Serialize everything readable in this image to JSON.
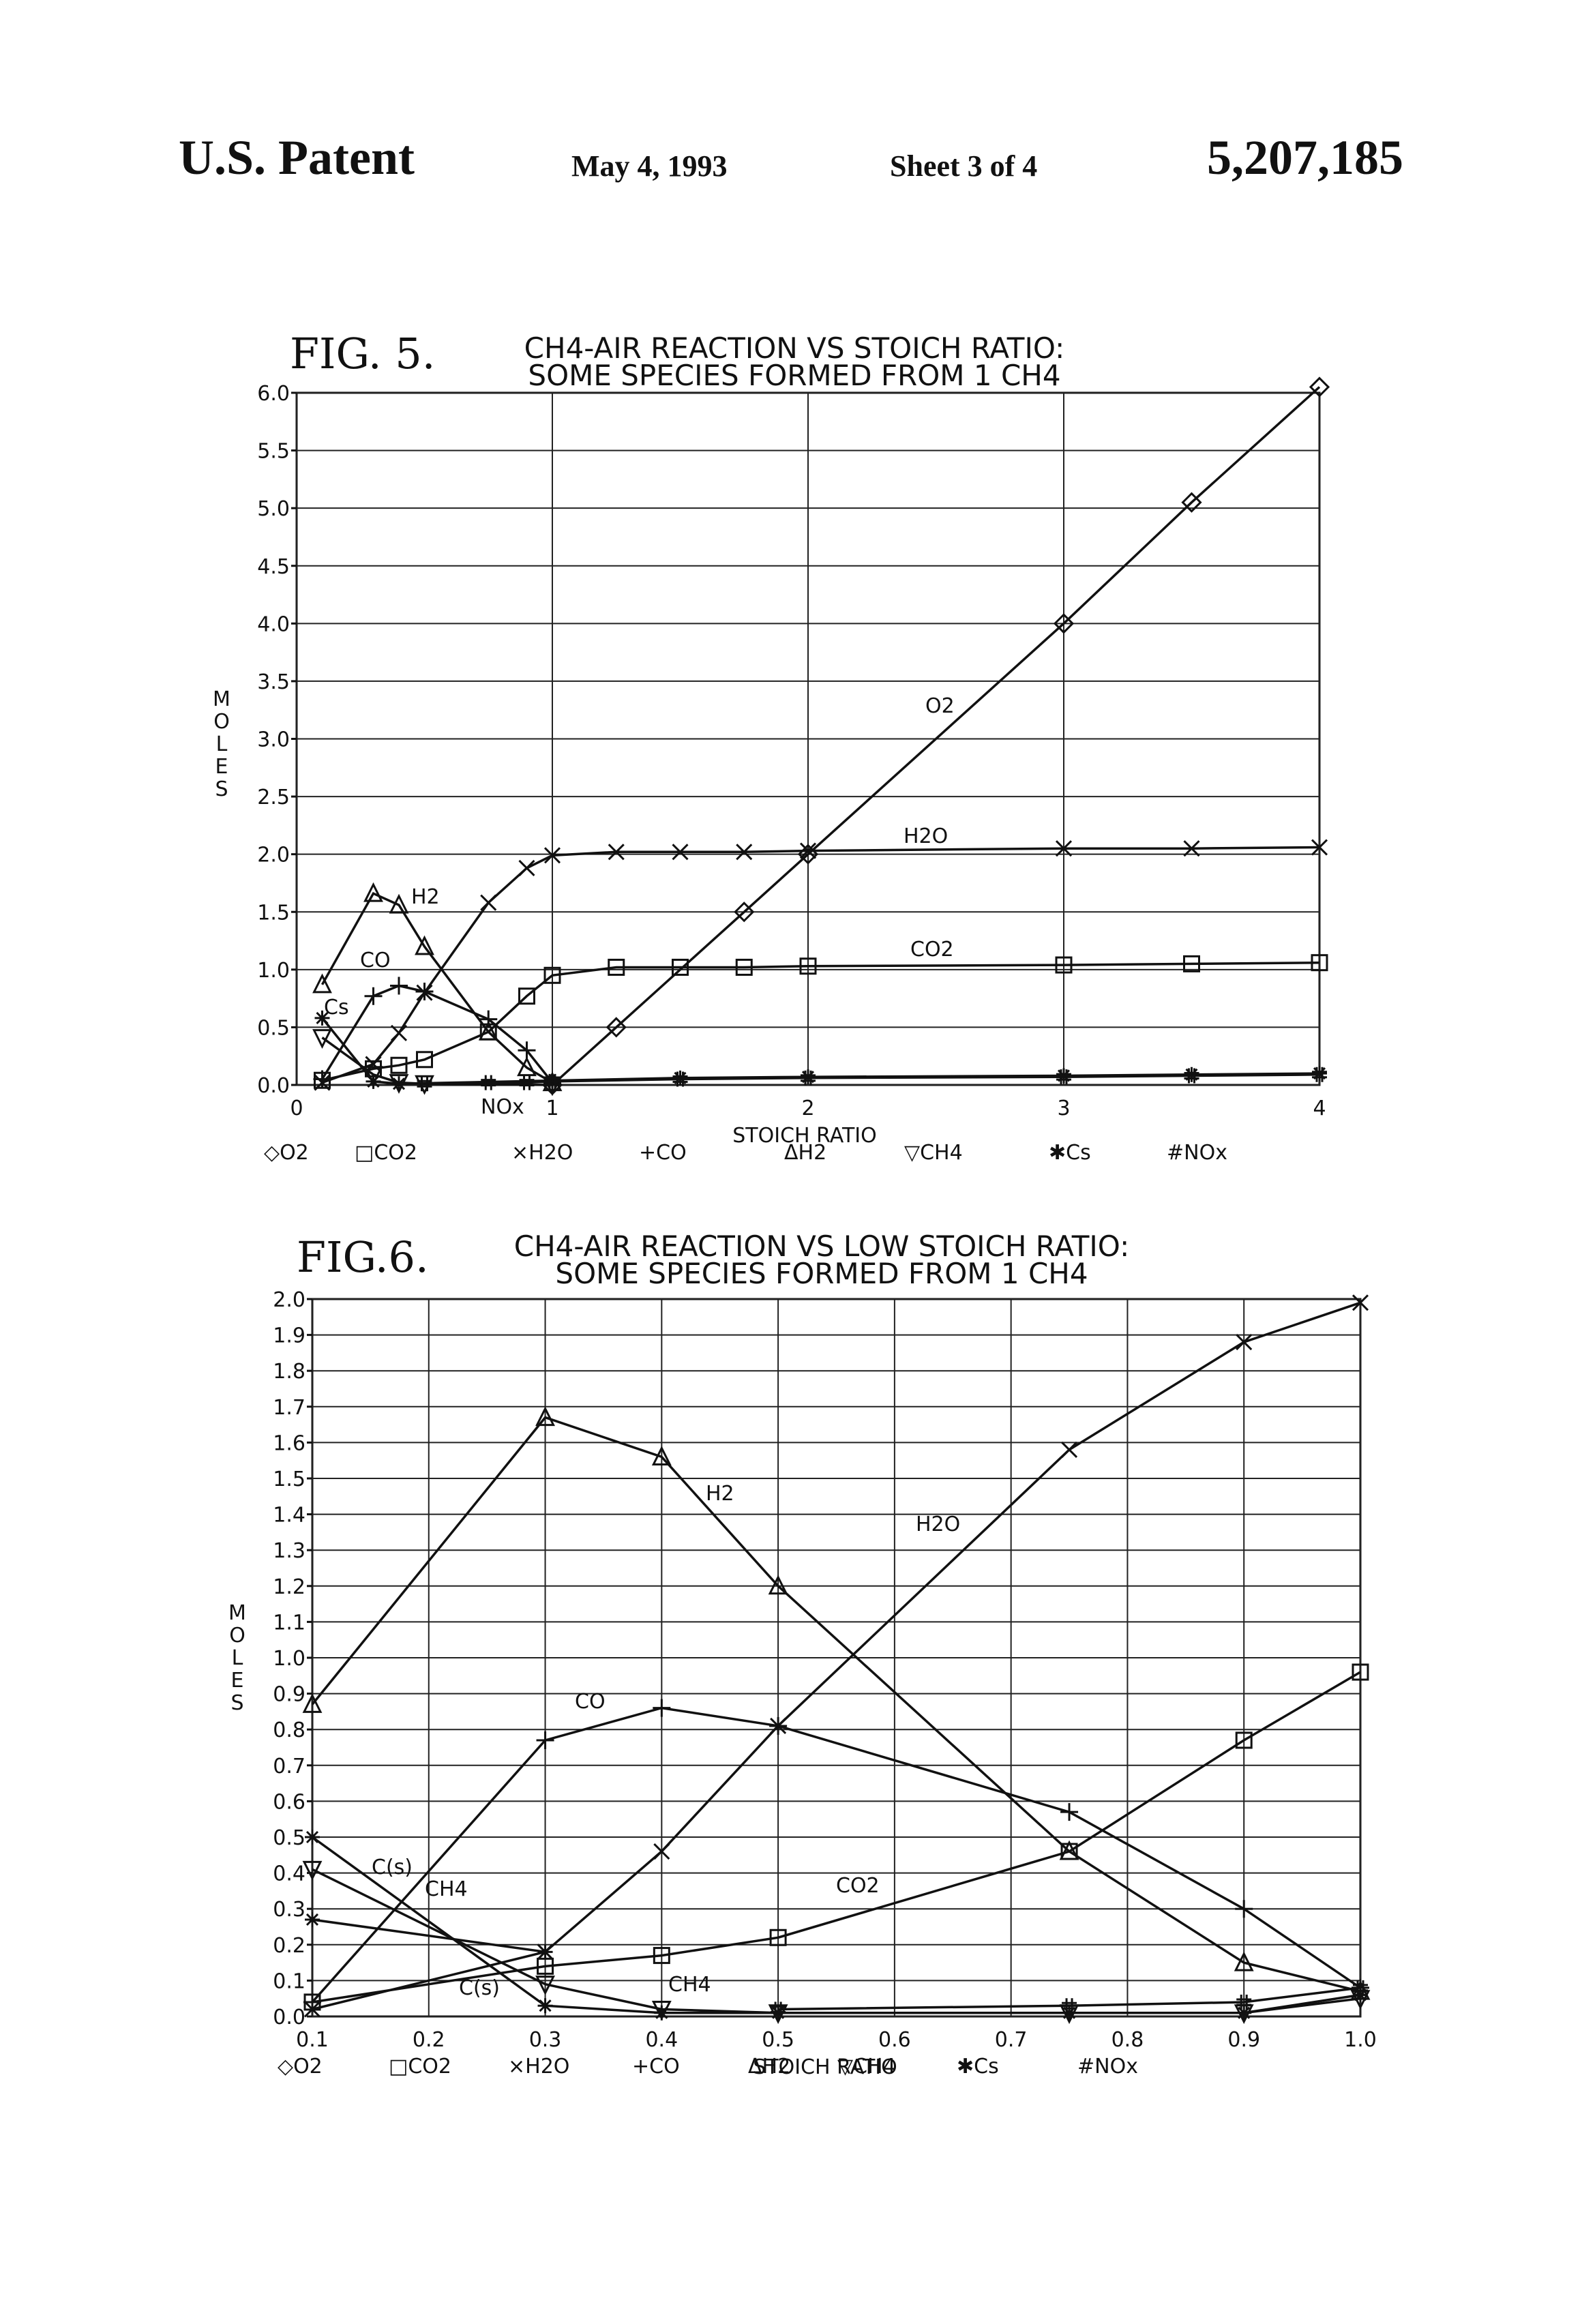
{
  "header": {
    "patent": "U.S. Patent",
    "date": "May 4, 1993",
    "sheet": "Sheet 3 of 4",
    "number": "5,207,185"
  },
  "chart_data": [
    {
      "type": "line",
      "figure_label": "FIG. 5.",
      "title": "CH4-AIR REACTION VS STOICH RATIO:",
      "subtitle": "SOME SPECIES FORMED FROM 1 CH4",
      "xlabel": "STOICH RATIO",
      "ylabel": "MOLES",
      "xlim": [
        0,
        4
      ],
      "ylim": [
        0,
        6
      ],
      "x_ticks": [
        0,
        1,
        2,
        3,
        4
      ],
      "x_tick_labels": [
        "0",
        "1",
        "2",
        "3",
        "4"
      ],
      "y_ticks": [
        0,
        0.5,
        1,
        1.5,
        2,
        2.5,
        3,
        3.5,
        4,
        4.5,
        5,
        5.5,
        6
      ],
      "y_tick_labels": [
        "0.0",
        "0.5",
        "1.0",
        "1.5",
        "2.0",
        "2.5",
        "3.0",
        "3.5",
        "4.0",
        "4.5",
        "5.0",
        "5.5",
        "6.0"
      ],
      "grid": true,
      "legend": [
        "◇O2",
        "□CO2",
        "×H2O",
        "+CO",
        "ΔH2",
        "▽CH4",
        "✱Cs",
        "#NOx"
      ],
      "series": [
        {
          "name": "O2",
          "marker": "diamond",
          "x": [
            1,
            1.25,
            1.75,
            2,
            3,
            3.5,
            4
          ],
          "y": [
            0,
            0.5,
            1.5,
            2.0,
            4.0,
            5.05,
            6.05
          ]
        },
        {
          "name": "H2O",
          "marker": "x",
          "x": [
            0.1,
            0.3,
            0.4,
            0.5,
            0.75,
            0.9,
            1,
            1.25,
            1.5,
            1.75,
            2,
            3,
            3.5,
            4
          ],
          "y": [
            0.02,
            0.18,
            0.45,
            0.8,
            1.58,
            1.88,
            1.99,
            2.02,
            2.02,
            2.02,
            2.03,
            2.05,
            2.05,
            2.06
          ]
        },
        {
          "name": "CO2",
          "marker": "square",
          "x": [
            0.1,
            0.3,
            0.4,
            0.5,
            0.75,
            0.9,
            1,
            1.25,
            1.5,
            1.75,
            2,
            3,
            3.5,
            4
          ],
          "y": [
            0.04,
            0.14,
            0.17,
            0.22,
            0.46,
            0.77,
            0.95,
            1.02,
            1.02,
            1.02,
            1.03,
            1.04,
            1.05,
            1.06
          ]
        },
        {
          "name": "CO",
          "marker": "plus",
          "x": [
            0.1,
            0.3,
            0.4,
            0.5,
            0.75,
            0.9,
            1
          ],
          "y": [
            0.05,
            0.77,
            0.86,
            0.81,
            0.57,
            0.3,
            0.02
          ]
        },
        {
          "name": "H2",
          "marker": "triangle",
          "x": [
            0.1,
            0.3,
            0.4,
            0.5,
            0.75,
            0.9,
            1
          ],
          "y": [
            0.87,
            1.66,
            1.56,
            1.2,
            0.46,
            0.15,
            0.02
          ]
        },
        {
          "name": "CH4",
          "marker": "triangle-down",
          "x": [
            0.1,
            0.3,
            0.4,
            0.5,
            1
          ],
          "y": [
            0.41,
            0.09,
            0.02,
            0.01,
            0.0
          ]
        },
        {
          "name": "Cs",
          "marker": "asterisk",
          "x": [
            0.1,
            0.3,
            0.4,
            1.5,
            2,
            3,
            3.5,
            4
          ],
          "y": [
            0.58,
            0.03,
            0.01,
            0.06,
            0.07,
            0.08,
            0.09,
            0.1
          ]
        },
        {
          "name": "NOx",
          "marker": "hash",
          "x": [
            0.5,
            0.75,
            0.9,
            1,
            1.5,
            2,
            3,
            3.5,
            4
          ],
          "y": [
            0.01,
            0.02,
            0.02,
            0.03,
            0.05,
            0.06,
            0.07,
            0.08,
            0.09
          ]
        }
      ],
      "annotations": [
        "O2",
        "H2O",
        "CO2",
        "H2",
        "CO",
        "Cs",
        "NOx"
      ]
    },
    {
      "type": "line",
      "figure_label": "FIG.6.",
      "title": "CH4-AIR REACTION VS LOW STOICH RATIO:",
      "subtitle": "SOME SPECIES FORMED FROM 1 CH4",
      "xlabel": "STOICH RATIO",
      "ylabel": "MOLES",
      "xlim": [
        0.1,
        1.0
      ],
      "ylim": [
        0,
        2.0
      ],
      "x_ticks": [
        0.1,
        0.2,
        0.3,
        0.4,
        0.5,
        0.6,
        0.7,
        0.8,
        0.9,
        1.0
      ],
      "x_tick_labels": [
        "0.1",
        "0.2",
        "0.3",
        "0.4",
        "0.5",
        "0.6",
        "0.7",
        "0.8",
        "0.9",
        "1.0"
      ],
      "y_ticks": [
        0,
        0.1,
        0.2,
        0.3,
        0.4,
        0.5,
        0.6,
        0.7,
        0.8,
        0.9,
        1.0,
        1.1,
        1.2,
        1.3,
        1.4,
        1.5,
        1.6,
        1.7,
        1.8,
        1.9,
        2.0
      ],
      "y_tick_labels": [
        "0.0",
        "0.1",
        "0.2",
        "0.3",
        "0.4",
        "0.5",
        "0.6",
        "0.7",
        "0.8",
        "0.9",
        "1.0",
        "1.1",
        "1.2",
        "1.3",
        "1.4",
        "1.5",
        "1.6",
        "1.7",
        "1.8",
        "1.9",
        "2.0"
      ],
      "grid": true,
      "legend": [
        "◇O2",
        "□CO2",
        "×H2O",
        "+CO",
        "ΔH2",
        "▽CH4",
        "✱Cs",
        "#NOx"
      ],
      "series": [
        {
          "name": "H2",
          "marker": "triangle",
          "x": [
            0.1,
            0.3,
            0.4,
            0.5,
            0.75,
            0.9,
            1.0
          ],
          "y": [
            0.87,
            1.67,
            1.56,
            1.2,
            0.46,
            0.15,
            0.07
          ]
        },
        {
          "name": "H2O",
          "marker": "x",
          "x": [
            0.1,
            0.3,
            0.4,
            0.5,
            0.75,
            0.9,
            1.0
          ],
          "y": [
            0.02,
            0.18,
            0.46,
            0.81,
            1.58,
            1.88,
            1.99
          ]
        },
        {
          "name": "CO",
          "marker": "plus",
          "x": [
            0.1,
            0.3,
            0.4,
            0.5,
            0.75,
            0.9,
            1.0
          ],
          "y": [
            0.04,
            0.77,
            0.86,
            0.81,
            0.57,
            0.3,
            0.08
          ]
        },
        {
          "name": "CO2",
          "marker": "square",
          "x": [
            0.1,
            0.3,
            0.4,
            0.5,
            0.75,
            0.9,
            1.0
          ],
          "y": [
            0.04,
            0.14,
            0.17,
            0.22,
            0.46,
            0.77,
            0.96
          ]
        },
        {
          "name": "CH4",
          "marker": "triangle-down",
          "x": [
            0.1,
            0.3,
            0.4,
            0.5,
            0.75,
            0.9,
            1.0
          ],
          "y": [
            0.41,
            0.09,
            0.02,
            0.01,
            0.01,
            0.01,
            0.05
          ]
        },
        {
          "name": "C(s)",
          "marker": "asterisk",
          "x": [
            0.1,
            0.3,
            0.4,
            0.5,
            0.75,
            0.9,
            1.0
          ],
          "y": [
            0.5,
            0.03,
            0.01,
            0.01,
            0.01,
            0.01,
            0.06
          ]
        },
        {
          "name": "C(s)",
          "marker": "asterisk",
          "x": [
            0.1,
            0.3
          ],
          "y": [
            0.27,
            0.18
          ]
        },
        {
          "name": "NOx",
          "marker": "hash",
          "x": [
            0.5,
            0.75,
            0.9,
            1.0
          ],
          "y": [
            0.02,
            0.03,
            0.04,
            0.08
          ]
        }
      ],
      "annotations": [
        "H2",
        "H2O",
        "CO",
        "CO2",
        "C(s)",
        "CH4",
        "C(s)",
        "CH4"
      ]
    }
  ]
}
